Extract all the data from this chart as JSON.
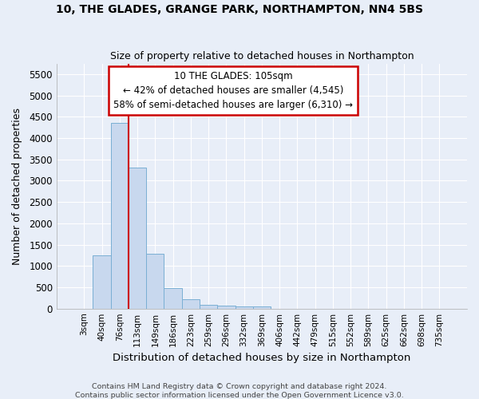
{
  "title": "10, THE GLADES, GRANGE PARK, NORTHAMPTON, NN4 5BS",
  "subtitle": "Size of property relative to detached houses in Northampton",
  "xlabel": "Distribution of detached houses by size in Northampton",
  "ylabel": "Number of detached properties",
  "bar_color": "#c8d8ee",
  "bar_edge_color": "#7aafd4",
  "background_color": "#e8eef8",
  "grid_color": "#ffffff",
  "bin_labels": [
    "3sqm",
    "40sqm",
    "76sqm",
    "113sqm",
    "149sqm",
    "186sqm",
    "223sqm",
    "259sqm",
    "296sqm",
    "332sqm",
    "369sqm",
    "406sqm",
    "442sqm",
    "479sqm",
    "515sqm",
    "552sqm",
    "589sqm",
    "625sqm",
    "662sqm",
    "698sqm",
    "735sqm"
  ],
  "bar_values": [
    0,
    1255,
    4350,
    3300,
    1280,
    490,
    220,
    85,
    65,
    55,
    50,
    0,
    0,
    0,
    0,
    0,
    0,
    0,
    0,
    0,
    0
  ],
  "ylim": [
    0,
    5750
  ],
  "yticks": [
    0,
    500,
    1000,
    1500,
    2000,
    2500,
    3000,
    3500,
    4000,
    4500,
    5000,
    5500
  ],
  "property_line_x": 2.5,
  "annotation_line1": "10 THE GLADES: 105sqm",
  "annotation_line2": "← 42% of detached houses are smaller (4,545)",
  "annotation_line3": "58% of semi-detached houses are larger (6,310) →",
  "annotation_box_color": "#ffffff",
  "annotation_border_color": "#cc0000",
  "vline_color": "#cc0000",
  "footer_text": "Contains HM Land Registry data © Crown copyright and database right 2024.\nContains public sector information licensed under the Open Government Licence v3.0."
}
